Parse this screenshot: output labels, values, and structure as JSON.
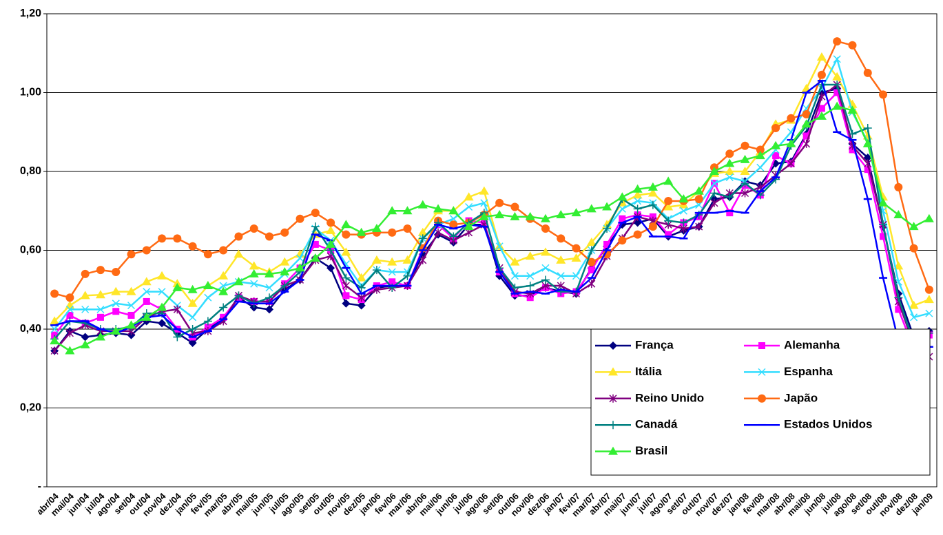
{
  "chart_data": {
    "type": "line",
    "categories": [
      "abr/04",
      "mai/04",
      "jun/04",
      "jul/04",
      "ago/04",
      "set/04",
      "out/04",
      "nov/04",
      "dez/04",
      "jan/05",
      "fev/05",
      "mar/05",
      "abr/05",
      "mai/05",
      "jun/05",
      "jul/05",
      "ago/05",
      "set/05",
      "out/05",
      "nov/05",
      "dez/05",
      "jan/06",
      "fev/06",
      "mar/06",
      "abr/06",
      "mai/06",
      "jun/06",
      "jul/06",
      "ago/06",
      "set/06",
      "out/06",
      "nov/06",
      "dez/06",
      "jan/07",
      "fev/07",
      "mar/07",
      "abr/07",
      "mai/07",
      "jun/07",
      "jul/07",
      "ago/07",
      "set/07",
      "out/07",
      "nov/07",
      "dez/07",
      "jan/08",
      "fev/08",
      "mar/08",
      "abr/08",
      "mai/08",
      "jun/08",
      "jul/08",
      "ago/08",
      "set/08",
      "out/08",
      "nov/08",
      "dez/08",
      "jan/09"
    ],
    "ylim": [
      0,
      1.2
    ],
    "yticks": [
      {
        "value": 0,
        "label": "-"
      },
      {
        "value": 0.2,
        "label": "0,20"
      },
      {
        "value": 0.4,
        "label": "0,40"
      },
      {
        "value": 0.6,
        "label": "0,60"
      },
      {
        "value": 0.8,
        "label": "0,80"
      },
      {
        "value": 1.0,
        "label": "1,00"
      },
      {
        "value": 1.2,
        "label": "1,20"
      }
    ],
    "grid": true,
    "legend": "bottom-right",
    "series": [
      {
        "name": "França",
        "color": "#000080",
        "marker": "diamond",
        "values": [
          0.345,
          0.395,
          0.38,
          0.385,
          0.39,
          0.385,
          0.42,
          0.415,
          0.39,
          0.365,
          0.4,
          0.425,
          0.48,
          0.455,
          0.45,
          0.5,
          0.525,
          0.58,
          0.555,
          0.465,
          0.46,
          0.505,
          0.51,
          0.51,
          0.59,
          0.64,
          0.62,
          0.665,
          0.665,
          0.535,
          0.485,
          0.485,
          0.505,
          0.495,
          0.49,
          0.555,
          0.61,
          0.665,
          0.67,
          0.68,
          0.635,
          0.65,
          0.66,
          0.73,
          0.735,
          0.775,
          0.765,
          0.82,
          0.825,
          0.895,
          1.0,
          1.01,
          0.87,
          0.835,
          0.66,
          0.49,
          0.38,
          0.395
        ]
      },
      {
        "name": "Alemanha",
        "color": "#ff00ff",
        "marker": "square",
        "values": [
          0.385,
          0.435,
          0.415,
          0.43,
          0.445,
          0.435,
          0.47,
          0.45,
          0.4,
          0.38,
          0.405,
          0.43,
          0.48,
          0.47,
          0.47,
          0.515,
          0.555,
          0.615,
          0.6,
          0.485,
          0.475,
          0.51,
          0.52,
          0.51,
          0.605,
          0.665,
          0.63,
          0.675,
          0.67,
          0.545,
          0.49,
          0.48,
          0.505,
          0.49,
          0.495,
          0.55,
          0.615,
          0.68,
          0.69,
          0.685,
          0.64,
          0.67,
          0.685,
          0.77,
          0.695,
          0.765,
          0.74,
          0.84,
          0.82,
          0.89,
          0.96,
          1.0,
          0.855,
          0.805,
          0.635,
          0.45,
          0.35,
          0.385
        ]
      },
      {
        "name": "Itália",
        "color": "#ffe629",
        "marker": "triangle",
        "values": [
          0.42,
          0.46,
          0.485,
          0.487,
          0.495,
          0.495,
          0.52,
          0.535,
          0.515,
          0.465,
          0.51,
          0.535,
          0.59,
          0.56,
          0.545,
          0.57,
          0.59,
          0.64,
          0.65,
          0.595,
          0.53,
          0.575,
          0.57,
          0.575,
          0.645,
          0.7,
          0.7,
          0.735,
          0.75,
          0.61,
          0.57,
          0.585,
          0.595,
          0.575,
          0.58,
          0.62,
          0.665,
          0.72,
          0.74,
          0.745,
          0.71,
          0.715,
          0.75,
          0.795,
          0.8,
          0.8,
          0.85,
          0.92,
          0.93,
          1.01,
          1.09,
          1.04,
          0.97,
          0.89,
          0.735,
          0.56,
          0.46,
          0.475
        ]
      },
      {
        "name": "Espanha",
        "color": "#33ddff",
        "marker": "x",
        "values": [
          0.4,
          0.45,
          0.45,
          0.45,
          0.465,
          0.46,
          0.495,
          0.495,
          0.46,
          0.43,
          0.48,
          0.51,
          0.52,
          0.515,
          0.505,
          0.54,
          0.58,
          0.655,
          0.625,
          0.565,
          0.51,
          0.55,
          0.545,
          0.545,
          0.63,
          0.665,
          0.68,
          0.71,
          0.72,
          0.61,
          0.535,
          0.535,
          0.555,
          0.535,
          0.535,
          0.6,
          0.655,
          0.705,
          0.725,
          0.72,
          0.68,
          0.7,
          0.715,
          0.77,
          0.785,
          0.775,
          0.81,
          0.855,
          0.9,
          0.96,
          1.01,
          1.085,
          0.95,
          0.875,
          0.7,
          0.52,
          0.43,
          0.44
        ]
      },
      {
        "name": "Reino Unido",
        "color": "#800080",
        "marker": "star",
        "values": [
          0.345,
          0.39,
          0.41,
          0.395,
          0.395,
          0.395,
          0.43,
          0.445,
          0.45,
          0.39,
          0.395,
          0.42,
          0.485,
          0.47,
          0.47,
          0.51,
          0.525,
          0.575,
          0.585,
          0.51,
          0.48,
          0.5,
          0.505,
          0.51,
          0.575,
          0.645,
          0.625,
          0.645,
          0.665,
          0.555,
          0.495,
          0.49,
          0.51,
          0.51,
          0.49,
          0.515,
          0.585,
          0.63,
          0.685,
          0.675,
          0.665,
          0.655,
          0.66,
          0.72,
          0.745,
          0.745,
          0.76,
          0.79,
          0.82,
          0.87,
          0.99,
          1.02,
          0.865,
          0.82,
          0.665,
          0.47,
          0.36,
          0.33
        ]
      },
      {
        "name": "Japão",
        "color": "#ff6a13",
        "marker": "circle",
        "values": [
          0.49,
          0.48,
          0.54,
          0.55,
          0.545,
          0.59,
          0.6,
          0.63,
          0.63,
          0.61,
          0.59,
          0.6,
          0.635,
          0.655,
          0.635,
          0.645,
          0.68,
          0.695,
          0.67,
          0.64,
          0.64,
          0.645,
          0.645,
          0.655,
          0.605,
          0.675,
          0.665,
          0.67,
          0.69,
          0.72,
          0.71,
          0.68,
          0.655,
          0.63,
          0.605,
          0.57,
          0.59,
          0.625,
          0.64,
          0.66,
          0.725,
          0.725,
          0.73,
          0.81,
          0.845,
          0.865,
          0.855,
          0.91,
          0.935,
          0.945,
          1.045,
          1.13,
          1.12,
          1.05,
          0.995,
          0.76,
          0.605,
          0.5
        ]
      },
      {
        "name": "Canadá",
        "color": "#008080",
        "marker": "plus",
        "values": [
          0.375,
          0.42,
          0.415,
          0.4,
          0.4,
          0.405,
          0.44,
          0.44,
          0.38,
          0.4,
          0.42,
          0.455,
          0.485,
          0.465,
          0.48,
          0.51,
          0.545,
          0.66,
          0.6,
          0.53,
          0.505,
          0.55,
          0.505,
          0.535,
          0.63,
          0.67,
          0.635,
          0.67,
          0.695,
          0.555,
          0.505,
          0.51,
          0.525,
          0.495,
          0.495,
          0.6,
          0.655,
          0.73,
          0.705,
          0.715,
          0.675,
          0.67,
          0.69,
          0.745,
          0.735,
          0.77,
          0.74,
          0.78,
          0.865,
          0.915,
          1.02,
          1.02,
          0.895,
          0.91,
          0.665,
          0.48,
          0.365,
          0.39
        ]
      },
      {
        "name": "Estados Unidos",
        "color": "#0000ff",
        "marker": "dash",
        "values": [
          0.41,
          0.42,
          0.42,
          0.4,
          0.39,
          0.405,
          0.43,
          0.435,
          0.4,
          0.38,
          0.395,
          0.425,
          0.47,
          0.465,
          0.465,
          0.495,
          0.525,
          0.64,
          0.625,
          0.555,
          0.49,
          0.51,
          0.51,
          0.51,
          0.6,
          0.665,
          0.655,
          0.665,
          0.66,
          0.545,
          0.49,
          0.495,
          0.49,
          0.5,
          0.495,
          0.53,
          0.6,
          0.67,
          0.685,
          0.635,
          0.635,
          0.63,
          0.695,
          0.695,
          0.7,
          0.695,
          0.75,
          0.785,
          0.88,
          1.0,
          1.03,
          0.9,
          0.88,
          0.73,
          0.53,
          0.37,
          0.35,
          0.355
        ]
      },
      {
        "name": "Brasil",
        "color": "#33ee33",
        "marker": "triangle",
        "values": [
          0.37,
          0.345,
          0.36,
          0.38,
          0.395,
          0.41,
          0.43,
          0.455,
          0.505,
          0.5,
          0.51,
          0.495,
          0.52,
          0.54,
          0.54,
          0.545,
          0.555,
          0.58,
          0.615,
          0.665,
          0.645,
          0.655,
          0.7,
          0.7,
          0.715,
          0.705,
          0.7,
          0.66,
          0.685,
          0.69,
          0.685,
          0.685,
          0.68,
          0.69,
          0.695,
          0.705,
          0.71,
          0.735,
          0.755,
          0.76,
          0.775,
          0.73,
          0.75,
          0.8,
          0.82,
          0.83,
          0.84,
          0.865,
          0.87,
          0.92,
          0.94,
          0.965,
          0.955,
          0.87,
          0.72,
          0.69,
          0.66,
          0.68
        ]
      }
    ]
  }
}
